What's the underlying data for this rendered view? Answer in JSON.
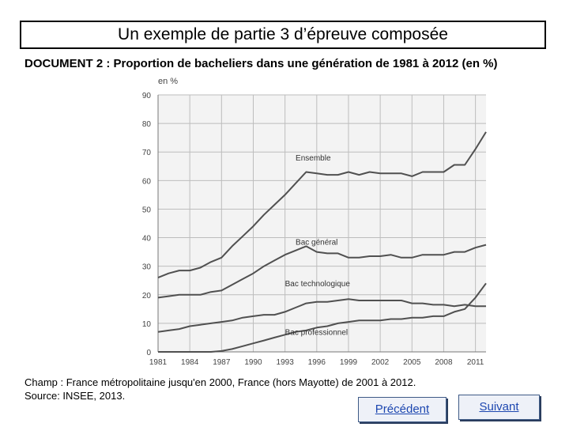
{
  "slide": {
    "title": "Un exemple de partie 3 d’épreuve composée",
    "doc_heading": "DOCUMENT 2 : Proportion de bacheliers dans une génération de 1981 à 2012 (en %)",
    "caption_line1": "Champ : France métropolitaine jusqu'en 2000, France (hors Mayotte) de 2001 à 2012.",
    "caption_line2": "Source: INSEE, 2013.",
    "buttons": {
      "prev_label": "Précédent",
      "next_label": "Suivant"
    }
  },
  "chart_data": {
    "type": "line",
    "ylabel": "en %",
    "ylim": [
      0,
      90
    ],
    "yticks": [
      0,
      10,
      20,
      30,
      40,
      50,
      60,
      70,
      80,
      90
    ],
    "xlim": [
      1981,
      2012
    ],
    "xticks": [
      1981,
      1984,
      1987,
      1990,
      1993,
      1996,
      1999,
      2002,
      2005,
      2008,
      2011
    ],
    "xtick_labels": [
      "1981",
      "1984",
      "1987",
      "1990",
      "1993",
      "1996",
      "1999",
      "2002",
      "2005",
      "2008",
      "2011"
    ],
    "grid": true,
    "line_color": "#505050",
    "series": [
      {
        "name": "Ensemble",
        "points": [
          [
            1981,
            26
          ],
          [
            1982,
            27.5
          ],
          [
            1983,
            28.5
          ],
          [
            1984,
            28.5
          ],
          [
            1985,
            29.5
          ],
          [
            1986,
            31.5
          ],
          [
            1987,
            33
          ],
          [
            1988,
            37
          ],
          [
            1989,
            40.5
          ],
          [
            1990,
            44
          ],
          [
            1991,
            48
          ],
          [
            1992,
            51.5
          ],
          [
            1993,
            55
          ],
          [
            1994,
            59
          ],
          [
            1995,
            63
          ],
          [
            1996,
            62.5
          ],
          [
            1997,
            62
          ],
          [
            1998,
            62
          ],
          [
            1999,
            63
          ],
          [
            2000,
            62
          ],
          [
            2001,
            63
          ],
          [
            2002,
            62.5
          ],
          [
            2003,
            62.5
          ],
          [
            2004,
            62.5
          ],
          [
            2005,
            61.5
          ],
          [
            2006,
            63
          ],
          [
            2007,
            63
          ],
          [
            2008,
            63
          ],
          [
            2009,
            65.5
          ],
          [
            2010,
            65.5
          ],
          [
            2011,
            71
          ],
          [
            2012,
            77
          ]
        ]
      },
      {
        "name": "Bac général",
        "points": [
          [
            1981,
            19
          ],
          [
            1982,
            19.5
          ],
          [
            1983,
            20
          ],
          [
            1984,
            20
          ],
          [
            1985,
            20
          ],
          [
            1986,
            21
          ],
          [
            1987,
            21.5
          ],
          [
            1988,
            23.5
          ],
          [
            1989,
            25.5
          ],
          [
            1990,
            27.5
          ],
          [
            1991,
            30
          ],
          [
            1992,
            32
          ],
          [
            1993,
            34
          ],
          [
            1994,
            35.5
          ],
          [
            1995,
            37
          ],
          [
            1996,
            35
          ],
          [
            1997,
            34.5
          ],
          [
            1998,
            34.5
          ],
          [
            1999,
            33
          ],
          [
            2000,
            33
          ],
          [
            2001,
            33.5
          ],
          [
            2002,
            33.5
          ],
          [
            2003,
            34
          ],
          [
            2004,
            33
          ],
          [
            2005,
            33
          ],
          [
            2006,
            34
          ],
          [
            2007,
            34
          ],
          [
            2008,
            34
          ],
          [
            2009,
            35
          ],
          [
            2010,
            35
          ],
          [
            2011,
            36.5
          ],
          [
            2012,
            37.5
          ]
        ]
      },
      {
        "name": "Bac technologique",
        "points": [
          [
            1981,
            7
          ],
          [
            1982,
            7.5
          ],
          [
            1983,
            8
          ],
          [
            1984,
            9
          ],
          [
            1985,
            9.5
          ],
          [
            1986,
            10
          ],
          [
            1987,
            10.5
          ],
          [
            1988,
            11
          ],
          [
            1989,
            12
          ],
          [
            1990,
            12.5
          ],
          [
            1991,
            13
          ],
          [
            1992,
            13
          ],
          [
            1993,
            14
          ],
          [
            1994,
            15.5
          ],
          [
            1995,
            17
          ],
          [
            1996,
            17.5
          ],
          [
            1997,
            17.5
          ],
          [
            1998,
            18
          ],
          [
            1999,
            18.5
          ],
          [
            2000,
            18
          ],
          [
            2001,
            18
          ],
          [
            2002,
            18
          ],
          [
            2003,
            18
          ],
          [
            2004,
            18
          ],
          [
            2005,
            17
          ],
          [
            2006,
            17
          ],
          [
            2007,
            16.5
          ],
          [
            2008,
            16.5
          ],
          [
            2009,
            16
          ],
          [
            2010,
            16.5
          ],
          [
            2011,
            16
          ],
          [
            2012,
            16
          ]
        ]
      },
      {
        "name": "Bac professionnel",
        "points": [
          [
            1981,
            0
          ],
          [
            1982,
            0
          ],
          [
            1983,
            0
          ],
          [
            1984,
            0
          ],
          [
            1985,
            0
          ],
          [
            1986,
            0
          ],
          [
            1987,
            0.3
          ],
          [
            1988,
            1
          ],
          [
            1989,
            2
          ],
          [
            1990,
            3
          ],
          [
            1991,
            4
          ],
          [
            1992,
            5
          ],
          [
            1993,
            6
          ],
          [
            1994,
            7
          ],
          [
            1995,
            7.5
          ],
          [
            1996,
            8.5
          ],
          [
            1997,
            9
          ],
          [
            1998,
            10
          ],
          [
            1999,
            10.5
          ],
          [
            2000,
            11
          ],
          [
            2001,
            11
          ],
          [
            2002,
            11
          ],
          [
            2003,
            11.5
          ],
          [
            2004,
            11.5
          ],
          [
            2005,
            12
          ],
          [
            2006,
            12
          ],
          [
            2007,
            12.5
          ],
          [
            2008,
            12.5
          ],
          [
            2009,
            14
          ],
          [
            2010,
            15
          ],
          [
            2011,
            19
          ],
          [
            2012,
            24
          ]
        ]
      }
    ],
    "series_labels_at": [
      [
        1994,
        67
      ],
      [
        1994,
        37.5
      ],
      [
        1993,
        23
      ],
      [
        1993,
        6
      ]
    ]
  }
}
